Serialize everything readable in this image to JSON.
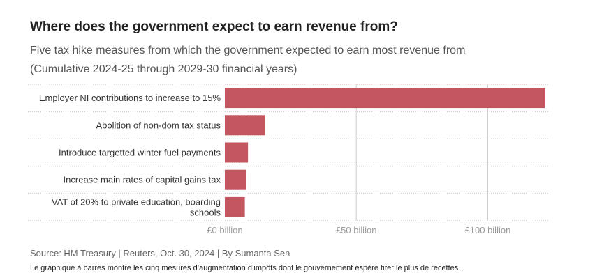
{
  "title": "Where does the government expect to earn revenue from?",
  "subtitle_line1": "Five tax hike measures from which the government expected to earn most revenue from",
  "subtitle_line2": "(Cumulative 2024-25 through 2029-30 financial years)",
  "source": "Source: HM Treasury | Reuters, Oct. 30, 2024 | By Sumanta Sen",
  "note": "Le graphique à barres montre les cinq mesures d’augmentation d’impôts dont le gouvernement espère tirer le plus de recettes.",
  "colors": {
    "bar": "#c3565f",
    "grid": "#cccccc",
    "text": "#333333"
  },
  "chart_data": {
    "type": "bar",
    "orientation": "horizontal",
    "title": "Where does the government expect to earn revenue from?",
    "subtitle": "Five tax hike measures from which the government expected to earn most revenue from (Cumulative 2024-25 through 2029-30 financial years)",
    "categories": [
      [
        "Employer NI contributions to increase to 15%"
      ],
      [
        "Abolition of non-dom tax status"
      ],
      [
        "Introduce targetted winter fuel payments"
      ],
      [
        "Increase main rates of capital gains tax"
      ],
      [
        "VAT of 20% to private education, boarding",
        "schools"
      ]
    ],
    "values": [
      121.7,
      15.4,
      8.8,
      8.0,
      7.6
    ],
    "value_unit": "billion GBP",
    "xlim": [
      0,
      123
    ],
    "xticks": [
      {
        "value": 0,
        "label": "£0 billion"
      },
      {
        "value": 50,
        "label": "£50 billion"
      },
      {
        "value": 100,
        "label": "£100 billion"
      }
    ],
    "grid": true,
    "legend": "none"
  }
}
